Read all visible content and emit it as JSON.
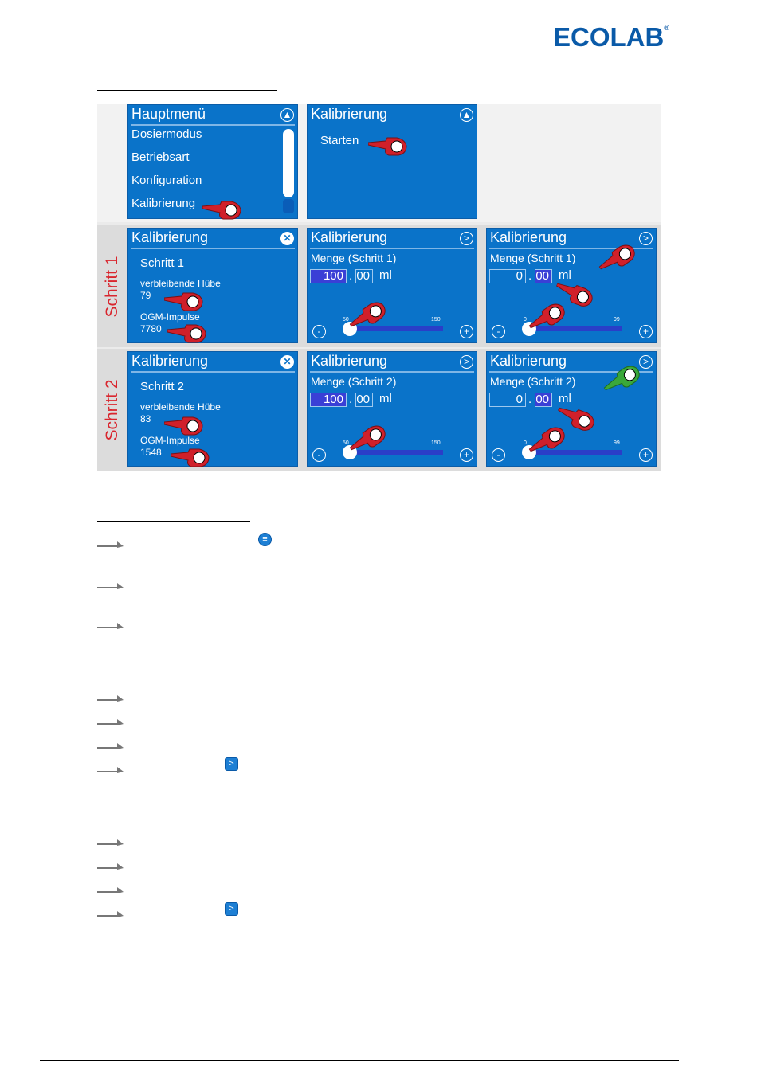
{
  "logo": {
    "text": "ECOLAB",
    "registered": "®"
  },
  "figure": {
    "step_labels": [
      "Schritt 1",
      "Schritt 2"
    ],
    "menu_panel": {
      "title": "Hauptmenü",
      "items": [
        "Dosiermodus",
        "Betriebsart",
        "Konfiguration",
        "Kalibrierung"
      ]
    },
    "calib_start_panel": {
      "title": "Kalibrierung",
      "item": "Starten"
    },
    "step1": {
      "info": {
        "title": "Kalibrierung",
        "step": "Schritt 1",
        "hub_label": "verbleibende Hübe",
        "hub_value": "79",
        "ogm_label": "OGM-Impulse",
        "ogm_value": "7780"
      },
      "coarse": {
        "title": "Kalibrierung",
        "label": "Menge (Schritt 1)",
        "int_value": "100",
        "dec_value": "00",
        "unit": "ml",
        "min_tick": "50",
        "max_tick": "150",
        "minus": "-",
        "plus": "+"
      },
      "fine": {
        "title": "Kalibrierung",
        "label": "Menge (Schritt 1)",
        "int_value": "0",
        "dec_value": "00",
        "unit": "ml",
        "min_tick": "0",
        "max_tick": "99",
        "minus": "-",
        "plus": "+"
      }
    },
    "step2": {
      "info": {
        "title": "Kalibrierung",
        "step": "Schritt 2",
        "hub_label": "verbleibende Hübe",
        "hub_value": "83",
        "ogm_label": "OGM-Impulse",
        "ogm_value": "1548"
      },
      "coarse": {
        "title": "Kalibrierung",
        "label": "Menge (Schritt 2)",
        "int_value": "100",
        "dec_value": "00",
        "unit": "ml",
        "min_tick": "50",
        "max_tick": "150",
        "minus": "-",
        "plus": "+"
      },
      "fine": {
        "title": "Kalibrierung",
        "label": "Menge (Schritt 2)",
        "int_value": "0",
        "dec_value": "00",
        "unit": "ml",
        "min_tick": "0",
        "max_tick": "99",
        "minus": "-",
        "plus": "+"
      }
    },
    "colors": {
      "panel": "#0a73c9",
      "hand_red": "#d0202a",
      "hand_green": "#3aa83a",
      "step_text": "#d9262e"
    }
  },
  "icons": {
    "menu_icon": "menu-icon",
    "next_icon": ">"
  }
}
